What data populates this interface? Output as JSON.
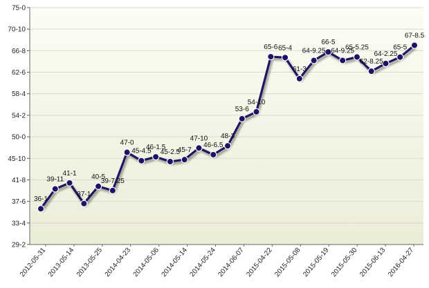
{
  "chart_data": {
    "type": "line",
    "title": "",
    "xlabel": "",
    "ylabel": "",
    "grid": true,
    "y_ticks": [
      "75-0",
      "70-10",
      "66-8",
      "62-6",
      "58-4",
      "54-2",
      "50-0",
      "45-10",
      "41-8",
      "37-6",
      "33-4",
      "29-2"
    ],
    "ylim": [
      29.1667,
      75.0
    ],
    "x_ticks": [
      "2012-05-31",
      "2013-05-14",
      "2013-05-25",
      "2014-04-23",
      "2014-05-06",
      "2014-05-14",
      "2014-05-24",
      "2014-06-07",
      "2015-04-22",
      "2015-05-08",
      "2015-05-19",
      "2015-05-30",
      "2015-06-13",
      "2016-04-27"
    ],
    "series": [
      {
        "color": "#1b1464",
        "points": [
          {
            "label": "36-1",
            "value": 36.0833
          },
          {
            "label": "39-11",
            "value": 39.9167
          },
          {
            "label": "41-1",
            "value": 41.0833
          },
          {
            "label": "37-1",
            "value": 37.0833
          },
          {
            "label": "40-5",
            "value": 40.4167
          },
          {
            "label": "39-7.25",
            "value": 39.6042
          },
          {
            "label": "47-0",
            "value": 47.0
          },
          {
            "label": "45-4.5",
            "value": 45.375
          },
          {
            "label": "46-1.5",
            "value": 46.125
          },
          {
            "label": "45-2.5",
            "value": 45.2083
          },
          {
            "label": "45-7",
            "value": 45.5833
          },
          {
            "label": "47-10",
            "value": 47.8333
          },
          {
            "label": "46-6.5",
            "value": 46.5417
          },
          {
            "label": "48-3",
            "value": 48.25
          },
          {
            "label": "53-6",
            "value": 53.5
          },
          {
            "label": "54-10",
            "value": 54.8333
          },
          {
            "label": "65-6",
            "value": 65.5
          },
          {
            "label": "65-4",
            "value": 65.3333
          },
          {
            "label": "61-3",
            "value": 61.25
          },
          {
            "label": "64-9.25",
            "value": 64.7708
          },
          {
            "label": "66-5",
            "value": 66.4167
          },
          {
            "label": "64-9.25",
            "value": 64.7708
          },
          {
            "label": "65-5.25",
            "value": 65.4375
          },
          {
            "label": "62-8.25",
            "value": 62.6875
          },
          {
            "label": "64-2.25",
            "value": 64.1875
          },
          {
            "label": "65-5",
            "value": 65.4167
          },
          {
            "label": "67-8.5",
            "value": 67.7083
          }
        ]
      }
    ]
  }
}
